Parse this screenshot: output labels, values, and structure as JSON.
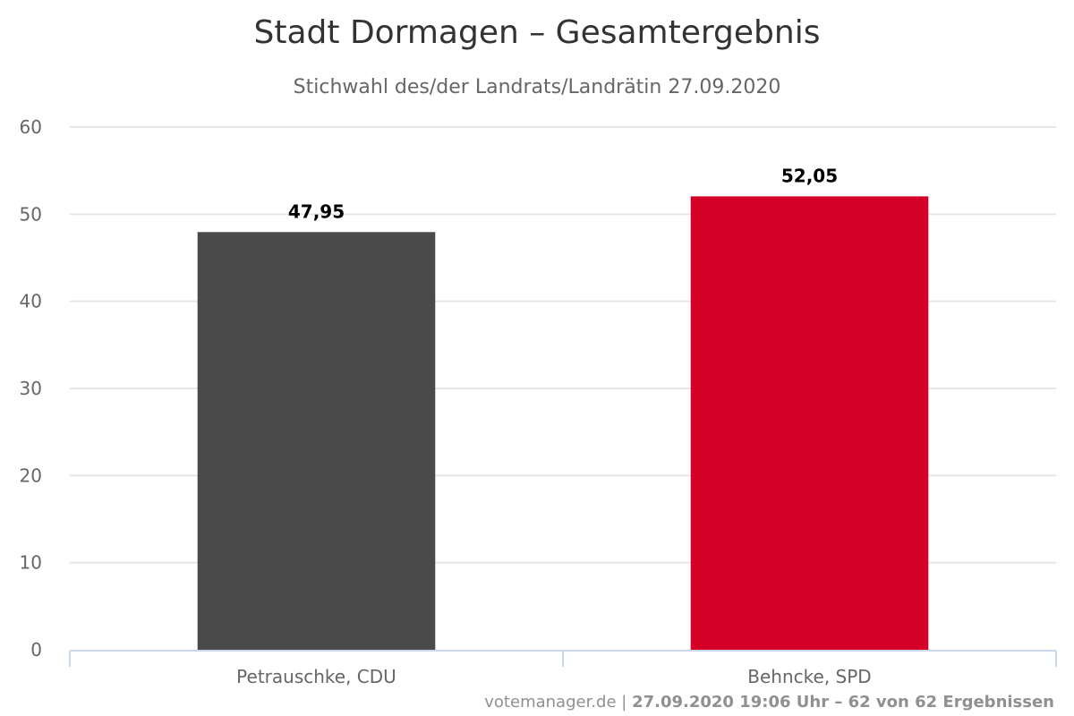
{
  "chart_data": {
    "type": "bar",
    "title": "Stadt Dormagen – Gesamtergebnis",
    "subtitle": "Stichwahl des/der Landrats/Landrätin 27.09.2020",
    "categories": [
      "Petrauschke, CDU",
      "Behncke, SPD"
    ],
    "values": [
      47.95,
      52.05
    ],
    "value_labels": [
      "47,95",
      "52,05"
    ],
    "colors": [
      "#4a4a4a",
      "#d50028"
    ],
    "ylim": [
      0,
      60
    ],
    "yticks": [
      0,
      10,
      20,
      30,
      40,
      50,
      60
    ],
    "grid": true,
    "xlabel": "",
    "ylabel": ""
  },
  "credits": {
    "source": "votemanager.de",
    "separator": " | ",
    "detail": "27.09.2020 19:06 Uhr – 62 von 62 Ergebnissen"
  }
}
